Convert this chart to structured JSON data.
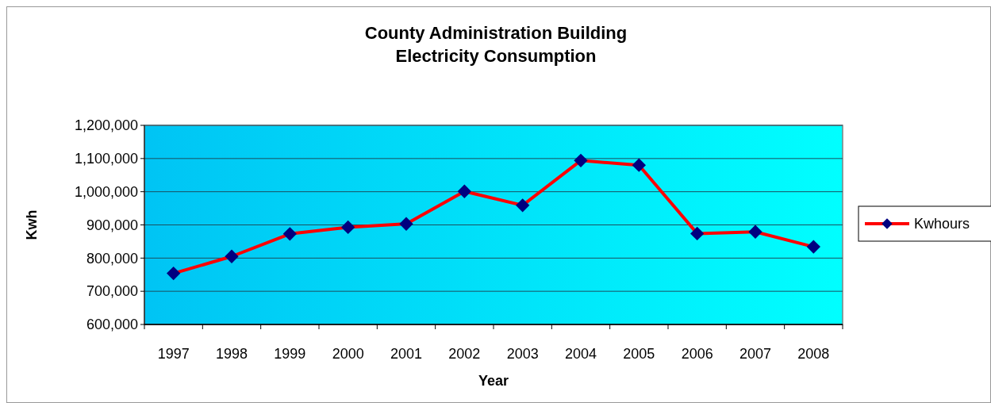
{
  "chart_data": {
    "type": "line",
    "title": "County Administration Building\nElectricity Consumption",
    "xlabel": "Year",
    "ylabel": "Kwh",
    "categories": [
      "1997",
      "1998",
      "1999",
      "2000",
      "2001",
      "2002",
      "2003",
      "2004",
      "2005",
      "2006",
      "2007",
      "2008"
    ],
    "series": [
      {
        "name": "Kwhours",
        "color": "#ff0000",
        "values": [
          754000,
          805000,
          873000,
          893000,
          903000,
          1001000,
          959000,
          1094000,
          1080000,
          874000,
          879000,
          834000
        ]
      }
    ],
    "ylim": [
      600000,
      1200000
    ],
    "yticks": [
      {
        "value": 600000,
        "label": "600,000"
      },
      {
        "value": 700000,
        "label": "700,000"
      },
      {
        "value": 800000,
        "label": "800,000"
      },
      {
        "value": 900000,
        "label": "900,000"
      },
      {
        "value": 1000000,
        "label": "1,000,000"
      },
      {
        "value": 1100000,
        "label": "1,100,000"
      },
      {
        "value": 1200000,
        "label": "1,200,000"
      }
    ],
    "grid": "y",
    "legend": "right",
    "marker": "diamond",
    "line_style": "solid"
  }
}
